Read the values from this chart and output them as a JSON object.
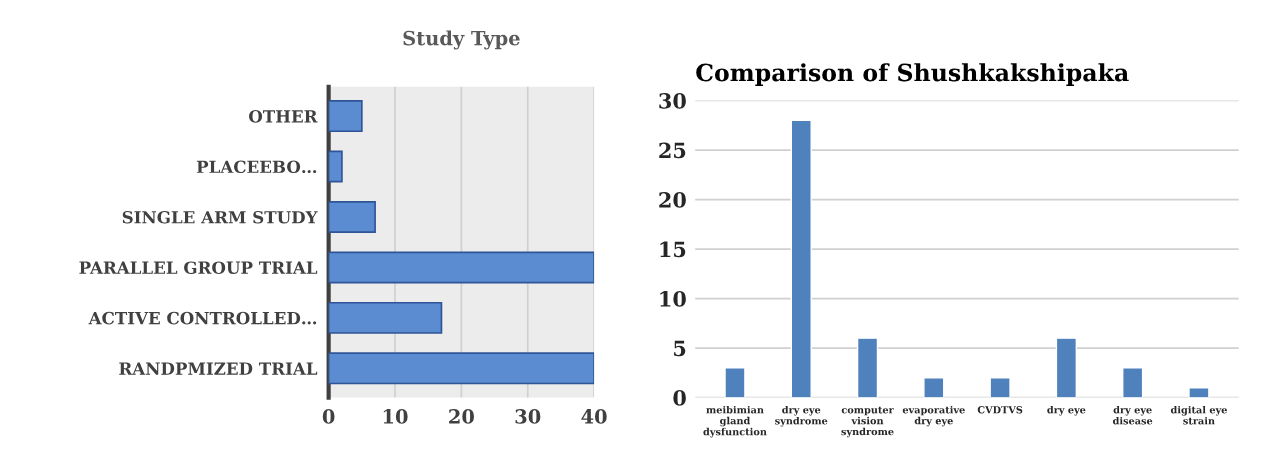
{
  "chart_data": [
    {
      "type": "bar",
      "title": "Study Type",
      "orientation": "horizontal",
      "categories": [
        "OTHER",
        "PLACEEBO…",
        "SINGLE ARM STUDY",
        "PARALLEL GROUP TRIAL",
        "ACTIVE CONTROLLED…",
        "RANDPMIZED TRIAL"
      ],
      "values": [
        5,
        2,
        7,
        40,
        17,
        40
      ],
      "color": "#5b8bd0",
      "xlim": [
        0,
        40
      ],
      "xticks": [
        0,
        10,
        20,
        30,
        40
      ],
      "grid": "x"
    },
    {
      "type": "bar",
      "title": "Comparison of Shushkakshipaka",
      "categories": [
        "meibimian\ngland\ndysfunction",
        "dry eye\nsyndrome",
        "computer\nvision\nsyndrome",
        "evaporative\ndry eye",
        "CVDTVS",
        "dry eye",
        "dry eye\ndisease",
        "digital eye\nstrain"
      ],
      "values": [
        3,
        28,
        6,
        2,
        2,
        6,
        3,
        1
      ],
      "color": "#4f81bd",
      "ylim": [
        0,
        30
      ],
      "yticks": [
        0,
        5,
        10,
        15,
        20,
        25,
        30
      ],
      "grid": "y"
    }
  ]
}
